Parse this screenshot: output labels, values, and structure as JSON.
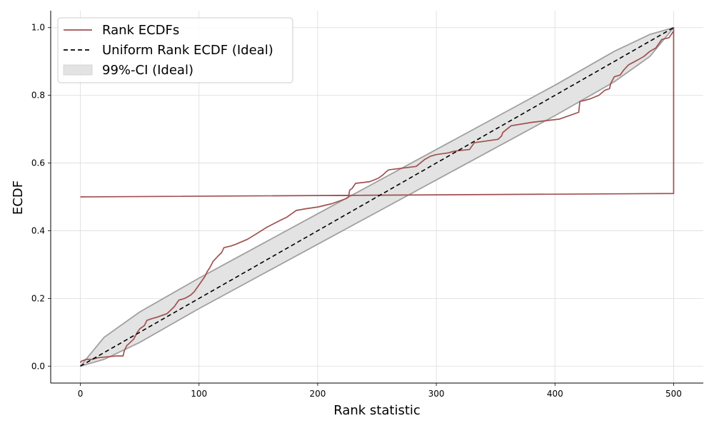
{
  "chart_data": {
    "type": "line",
    "xlabel": "Rank statistic",
    "ylabel": "ECDF",
    "xlim": [
      -25,
      525
    ],
    "ylim": [
      -0.05,
      1.05
    ],
    "xticks": [
      0,
      100,
      200,
      300,
      400,
      500
    ],
    "xtick_labels": [
      "0",
      "100",
      "200",
      "300",
      "400",
      "500"
    ],
    "yticks": [
      0.0,
      0.2,
      0.4,
      0.6,
      0.8,
      1.0
    ],
    "ytick_labels": [
      "0.0",
      "0.2",
      "0.4",
      "0.6",
      "0.8",
      "1.0"
    ],
    "grid": true,
    "legend_position": "top-left",
    "legend": [
      {
        "label": "Rank ECDFs",
        "style": "line",
        "color": "#a05050"
      },
      {
        "label": "Uniform Rank ECDF (Ideal)",
        "style": "dashed",
        "color": "#000000"
      },
      {
        "label": "99%-CI (Ideal)",
        "style": "patch",
        "color": "#e3e3e3"
      }
    ],
    "series": [
      {
        "name": "Rank ECDFs",
        "color": "#a05050",
        "x": [
          0,
          0,
          500,
          500,
          500,
          496,
          490,
          485,
          480,
          475,
          470,
          462,
          458,
          455,
          450,
          447,
          446,
          442,
          437,
          430,
          425,
          421,
          420,
          404,
          380,
          363,
          356,
          355,
          352,
          332,
          330,
          328,
          315,
          310,
          300,
          295,
          290,
          283,
          260,
          258,
          255,
          251,
          244,
          232,
          229,
          227,
          226,
          224,
          220,
          212,
          200,
          190,
          182,
          180,
          174,
          168,
          157,
          148,
          141,
          131,
          127,
          121,
          119,
          116,
          112,
          109,
          107,
          105,
          103,
          101,
          99,
          96,
          93,
          88,
          83,
          81,
          79,
          76,
          73,
          65,
          60,
          56,
          54,
          50,
          48,
          45,
          42,
          39,
          37,
          36,
          30,
          15,
          10,
          5,
          1,
          0
        ],
        "y": [
          0.5,
          0.5,
          0.51,
          1.0,
          0.99,
          0.97,
          0.965,
          0.94,
          0.93,
          0.915,
          0.905,
          0.89,
          0.875,
          0.86,
          0.855,
          0.835,
          0.82,
          0.815,
          0.8,
          0.79,
          0.785,
          0.782,
          0.75,
          0.73,
          0.72,
          0.71,
          0.69,
          0.68,
          0.67,
          0.66,
          0.65,
          0.64,
          0.635,
          0.63,
          0.625,
          0.62,
          0.61,
          0.59,
          0.58,
          0.575,
          0.565,
          0.555,
          0.545,
          0.54,
          0.525,
          0.52,
          0.5,
          0.495,
          0.49,
          0.48,
          0.47,
          0.465,
          0.46,
          0.455,
          0.44,
          0.43,
          0.41,
          0.39,
          0.375,
          0.36,
          0.355,
          0.35,
          0.335,
          0.325,
          0.31,
          0.29,
          0.28,
          0.265,
          0.255,
          0.245,
          0.235,
          0.22,
          0.21,
          0.2,
          0.195,
          0.185,
          0.175,
          0.165,
          0.155,
          0.145,
          0.14,
          0.135,
          0.12,
          0.11,
          0.1,
          0.08,
          0.07,
          0.06,
          0.045,
          0.03,
          0.03,
          0.025,
          0.02,
          0.02,
          0.015,
          0.01
        ]
      },
      {
        "name": "Uniform Rank ECDF (Ideal)",
        "color": "#000000",
        "dashed": true,
        "x": [
          0,
          500
        ],
        "y": [
          0.0,
          1.0
        ]
      }
    ],
    "band": {
      "name": "99%-CI (Ideal)",
      "fill": "#e3e3e3",
      "edge": "#a0a0a0",
      "x": [
        0,
        20,
        50,
        100,
        150,
        200,
        250,
        300,
        350,
        400,
        450,
        480,
        500
      ],
      "lower": [
        0.0,
        0.02,
        0.07,
        0.17,
        0.265,
        0.36,
        0.455,
        0.55,
        0.645,
        0.74,
        0.84,
        0.915,
        1.0
      ],
      "upper": [
        0.0,
        0.085,
        0.16,
        0.26,
        0.355,
        0.45,
        0.545,
        0.64,
        0.735,
        0.83,
        0.93,
        0.98,
        1.0
      ]
    }
  }
}
